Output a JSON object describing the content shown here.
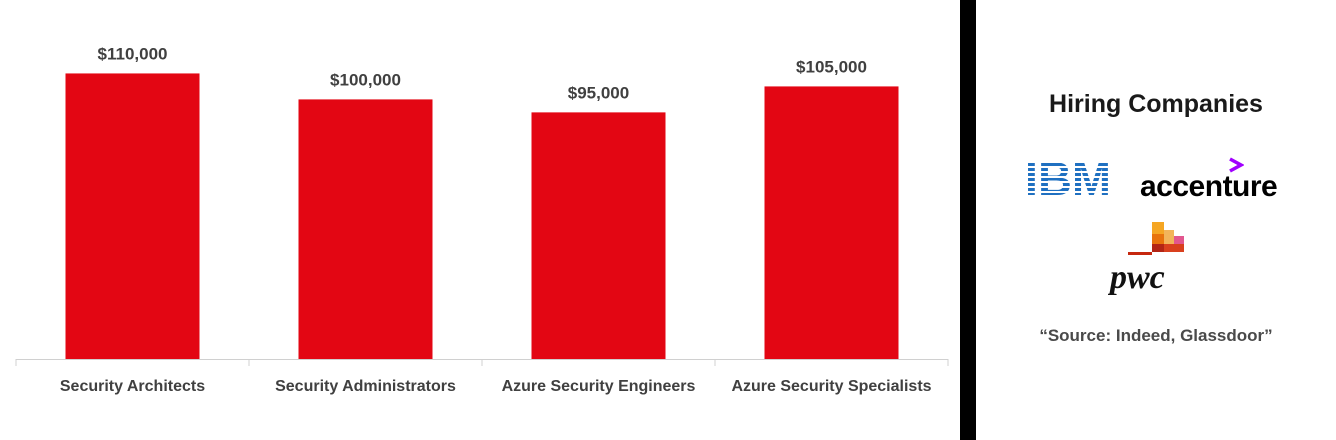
{
  "chart_data": {
    "type": "bar",
    "categories": [
      "Security Architects",
      "Security Administrators",
      "Azure Security Engineers",
      "Azure Security Specialists"
    ],
    "values": [
      110000,
      100000,
      95000,
      105000
    ],
    "value_labels": [
      "$110,000",
      "$100,000",
      "$95,000",
      "$105,000"
    ],
    "title": "",
    "xlabel": "",
    "ylabel": "",
    "ylim": [
      0,
      120000
    ],
    "grid": false,
    "bar_color": "#e30613"
  },
  "sidebar": {
    "title": "Hiring Companies",
    "logos": [
      {
        "name": "IBM",
        "icon": "ibm-logo",
        "color": "#1f70c1"
      },
      {
        "name": "accenture",
        "icon": "accenture-logo",
        "accent": "#a100ff"
      },
      {
        "name": "pwc",
        "icon": "pwc-logo"
      }
    ],
    "source": "“Source: Indeed, Glassdoor”"
  }
}
